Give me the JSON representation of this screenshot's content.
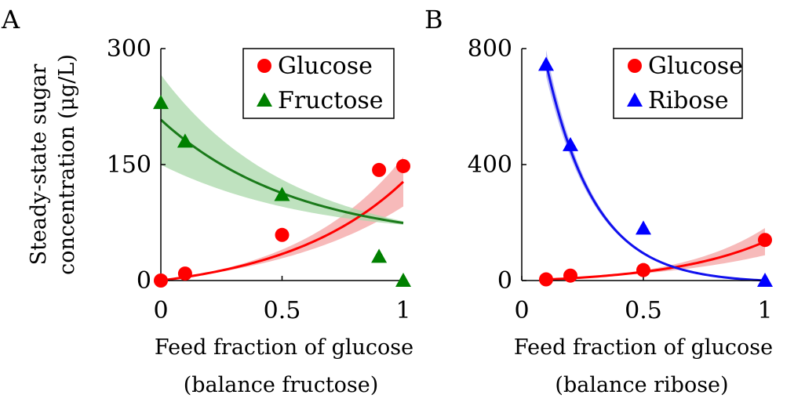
{
  "figure": {
    "ylabel_line1": "Steady-state sugar",
    "ylabel_line2": "concentration (μg/L)"
  },
  "chart_data": [
    {
      "panel": "A",
      "type": "scatter",
      "xlabel_line1": "Feed fraction of glucose",
      "xlabel_line2": "(balance fructose)",
      "xlim": [
        0,
        1
      ],
      "ylim": [
        0,
        300
      ],
      "xticks": [
        "0",
        "0.5",
        "1"
      ],
      "yticks": [
        "0",
        "150",
        "300"
      ],
      "legend_position": "top-right",
      "series": [
        {
          "name": "Glucose",
          "marker": "circle",
          "color": "#ff0000",
          "fit_color": "#ff0000",
          "band_color": "#f4a3a3",
          "x": [
            0,
            0.1,
            0.5,
            0.9,
            1.0
          ],
          "y": [
            0,
            9,
            59,
            143,
            148
          ],
          "fit": {
            "a": 20.0,
            "k": 2.0,
            "c": -20.0,
            "band": [
              0.08,
              0.25
            ]
          }
        },
        {
          "name": "Fructose",
          "marker": "triangle",
          "color": "#008000",
          "fit_color": "#1a7a1a",
          "band_color": "#a9d8a9",
          "x": [
            0,
            0.1,
            0.5,
            0.9,
            1.0
          ],
          "y": [
            230,
            180,
            111,
            31,
            0
          ],
          "fit": {
            "a": 160.0,
            "k": -1.8,
            "c": 48.0,
            "band": [
              0.28,
              0.03
            ]
          }
        }
      ]
    },
    {
      "panel": "B",
      "type": "scatter",
      "xlabel_line1": "Feed fraction of glucose",
      "xlabel_line2": "(balance ribose)",
      "xlim": [
        0,
        1
      ],
      "ylim": [
        0,
        800
      ],
      "xticks": [
        "0",
        "0.5",
        "1"
      ],
      "yticks": [
        "0",
        "400",
        "800"
      ],
      "legend_position": "top-right",
      "series": [
        {
          "name": "Glucose",
          "marker": "circle",
          "color": "#ff0000",
          "fit_color": "#ff0000",
          "band_color": "#f4a3a3",
          "x": [
            0.1,
            0.2,
            0.5,
            1.0
          ],
          "y": [
            4,
            17,
            36,
            140
          ],
          "fit": {
            "a": 12.0,
            "k": 2.5,
            "c": -12.0,
            "band": [
              0.05,
              0.35
            ]
          }
        },
        {
          "name": "Ribose",
          "marker": "triangle",
          "color": "#0000ff",
          "fit_color": "#1010ee",
          "band_color": "#a8a8f0",
          "x": [
            0.1,
            0.2,
            0.5,
            1.0
          ],
          "y": [
            745,
            468,
            180,
            0
          ],
          "fit": {
            "a": 1250.0,
            "k": -5.0,
            "c": -8.4,
            "band": [
              0.06,
              0.0
            ]
          }
        }
      ]
    }
  ]
}
